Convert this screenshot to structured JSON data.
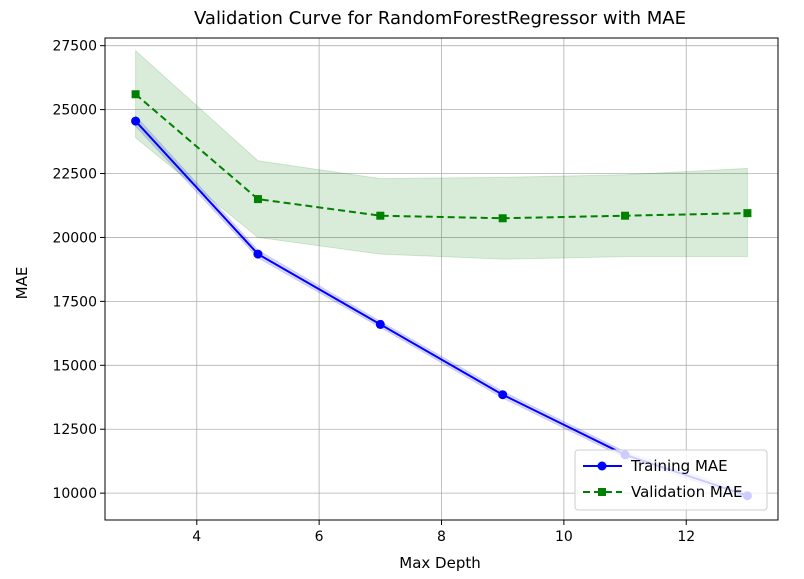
{
  "chart_data": {
    "type": "line",
    "title": "Validation Curve for RandomForestRegressor with MAE",
    "xlabel": "Max Depth",
    "ylabel": "MAE",
    "xlim": [
      2.5,
      13.5
    ],
    "ylim": [
      8950,
      27800
    ],
    "xticks": [
      4,
      6,
      8,
      10,
      12
    ],
    "yticks": [
      10000,
      12500,
      15000,
      17500,
      20000,
      22500,
      25000,
      27500
    ],
    "grid": true,
    "legend_position": "lower-right",
    "x": [
      3,
      5,
      7,
      9,
      11,
      13
    ],
    "series": [
      {
        "name": "Training MAE",
        "color": "#0000ff",
        "marker": "circle",
        "linestyle": "solid",
        "values": [
          24550,
          19350,
          16600,
          13850,
          11500,
          9900
        ],
        "band_lower": [
          24350,
          19200,
          16480,
          13720,
          11380,
          9780
        ],
        "band_upper": [
          24750,
          19500,
          16720,
          13980,
          11620,
          10020
        ],
        "band_color": "#0000ff"
      },
      {
        "name": "Validation MAE",
        "color": "#008000",
        "marker": "square",
        "linestyle": "dashed",
        "values": [
          25600,
          21500,
          20850,
          20750,
          20850,
          20950
        ],
        "band_lower": [
          23900,
          20000,
          19350,
          19150,
          19250,
          19250
        ],
        "band_upper": [
          27300,
          23000,
          22300,
          22350,
          22450,
          22700
        ],
        "band_color": "#008000"
      }
    ]
  }
}
